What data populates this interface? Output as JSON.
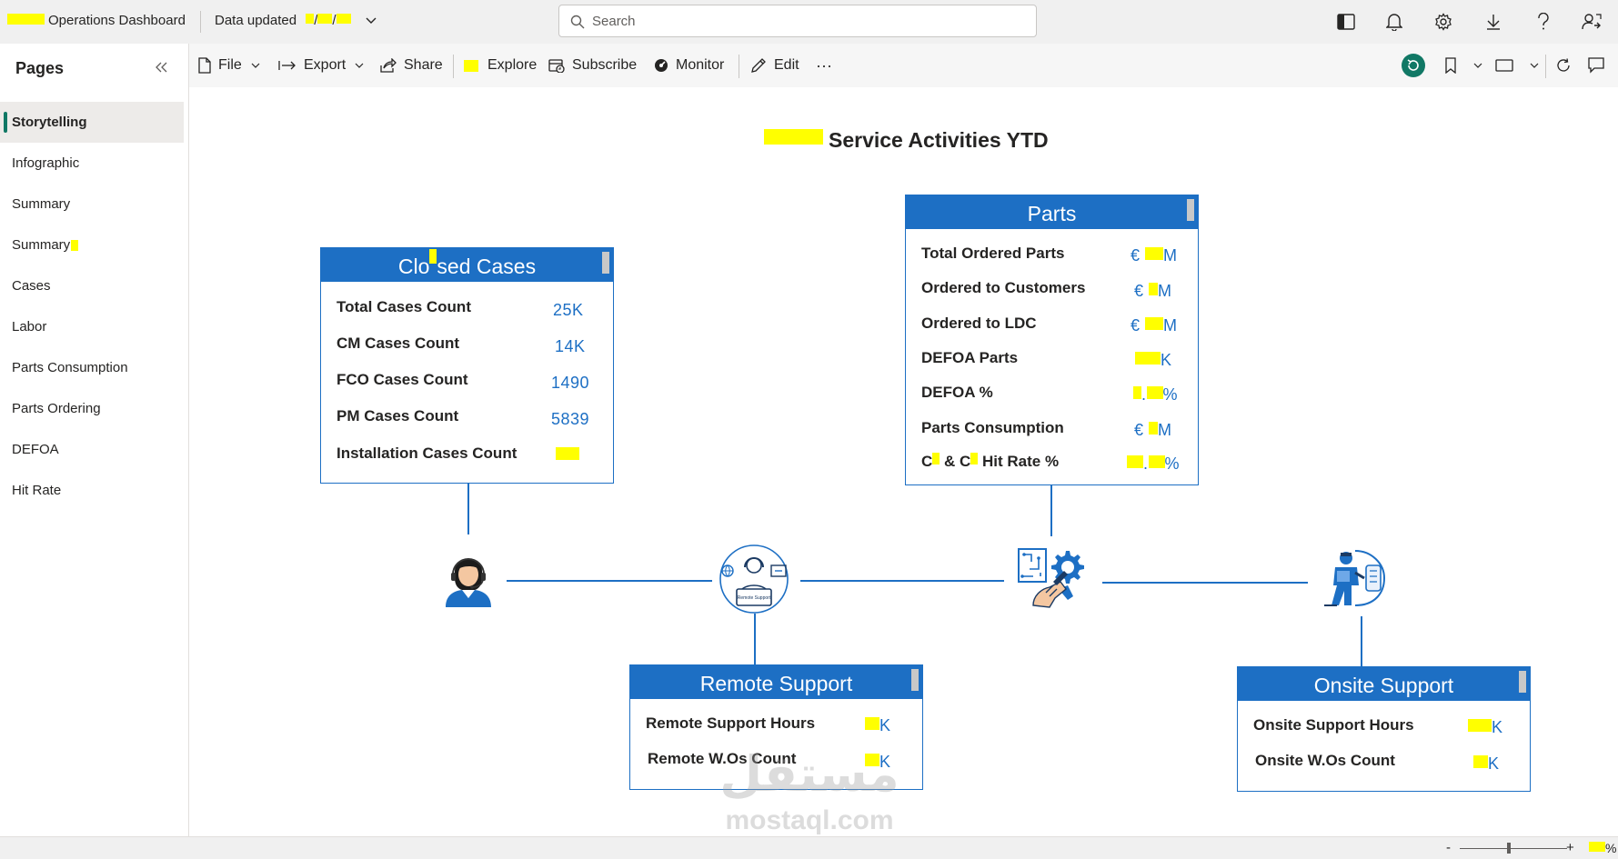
{
  "topbar": {
    "app_name": "Operations Dashboard",
    "data_updated_label": "Data updated",
    "date_separator": "/",
    "search_placeholder": "Search"
  },
  "pages_pane": {
    "title": "Pages",
    "items": [
      {
        "label": "Storytelling",
        "active": true
      },
      {
        "label": "Infographic"
      },
      {
        "label": "Summary"
      },
      {
        "label": "Summary"
      },
      {
        "label": "Cases"
      },
      {
        "label": "Labor"
      },
      {
        "label": "Parts Consumption"
      },
      {
        "label": "Parts Ordering"
      },
      {
        "label": "DEFOA"
      },
      {
        "label": "Hit Rate"
      }
    ]
  },
  "toolbar": {
    "file": "File",
    "export": "Export",
    "share": "Share",
    "explore": "Explore",
    "subscribe": "Subscribe",
    "monitor": "Monitor",
    "edit": "Edit",
    "more": "···"
  },
  "report": {
    "title": "Service Activities YTD"
  },
  "closed_cases": {
    "title_a": "Clo",
    "title_b": "sed Cases",
    "rows": [
      {
        "label": "Total Cases Count",
        "value": "25K"
      },
      {
        "label": "CM Cases Count",
        "value": "14K"
      },
      {
        "label": "FCO Cases Count",
        "value": "1490"
      },
      {
        "label": "PM Cases Count",
        "value": "5839"
      },
      {
        "label": "Installation Cases Count",
        "value": ""
      }
    ]
  },
  "parts": {
    "title": "Parts",
    "rows": [
      {
        "label": "Total Ordered Parts",
        "prefix": "€",
        "suffix": "M"
      },
      {
        "label": "Ordered to Customers",
        "prefix": "€",
        "suffix": "M"
      },
      {
        "label": "Ordered to LDC",
        "prefix": "€",
        "suffix": "M"
      },
      {
        "label": "DEFOA Parts",
        "prefix": "",
        "suffix": "K"
      },
      {
        "label": "DEFOA %",
        "prefix": "",
        "suffix": "%"
      },
      {
        "label": "Parts Consumption",
        "prefix": "€",
        "suffix": "M"
      },
      {
        "label_a": "C",
        "label_b": " & C",
        "label_c": " Hit Rate %",
        "prefix": "",
        "suffix": "%"
      }
    ],
    "defoa_dot": ".",
    "hitrate_dot": "."
  },
  "remote_support": {
    "title": "Remote Support",
    "rows": [
      {
        "label": "Remote Support Hours",
        "suffix": "K"
      },
      {
        "label": "Remote W.Os Count",
        "suffix": "K"
      }
    ],
    "icon_caption": "Remote Support"
  },
  "onsite_support": {
    "title": "Onsite Support",
    "rows": [
      {
        "label": "Onsite Support Hours",
        "suffix": "K"
      },
      {
        "label": "Onsite W.Os Count",
        "suffix": "K"
      }
    ]
  },
  "watermark": {
    "arabic": "مستقل",
    "latin": "mostaql.com"
  },
  "statusbar": {
    "minus": "-",
    "plus": "+",
    "pct_suffix": "%"
  },
  "colors": {
    "accent_blue": "#1d6fc4",
    "active_marker": "#117865",
    "highlight": "#ffff00"
  },
  "icons": [
    "search-icon",
    "panel-icon",
    "bell-icon",
    "gear-icon",
    "download-icon",
    "help-icon",
    "person-share-icon",
    "collapse-icon",
    "file-icon",
    "export-icon",
    "share-icon",
    "explore-icon",
    "subscribe-icon",
    "monitor-icon",
    "edit-icon",
    "more-icon",
    "reset-icon",
    "bookmark-icon",
    "view-icon",
    "refresh-icon",
    "comment-icon",
    "agent-icon",
    "remote-support-icon",
    "parts-gear-icon",
    "onsite-technician-icon"
  ]
}
